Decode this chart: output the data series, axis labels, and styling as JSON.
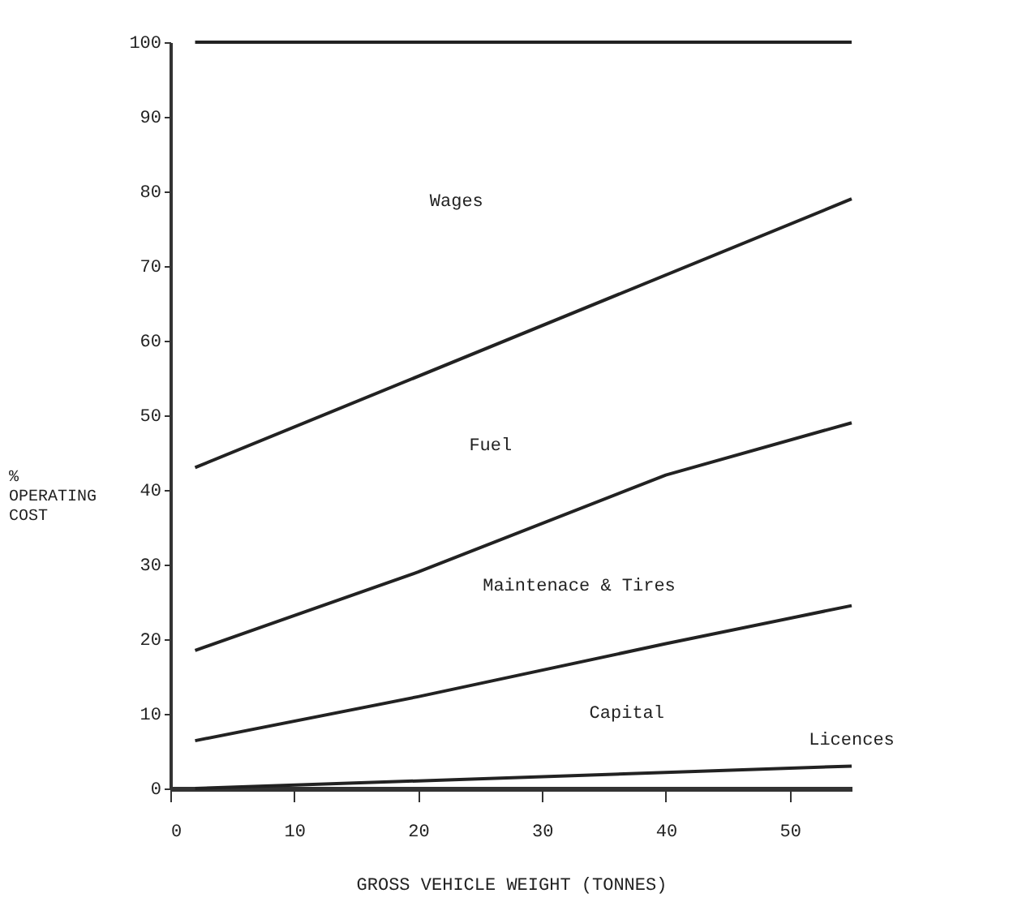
{
  "chart_data": {
    "type": "line",
    "xlabel": "GROSS VEHICLE WEIGHT (TONNES)",
    "ylabel": "% OPERATING COST",
    "xlim": [
      0,
      55
    ],
    "xticks": [
      0,
      10,
      20,
      30,
      40,
      50
    ],
    "ylim": [
      0,
      100
    ],
    "yticks": [
      0,
      10,
      20,
      30,
      40,
      50,
      60,
      70,
      80,
      90,
      100
    ],
    "grid": false,
    "marker": "none",
    "line_style": "solid",
    "series": [
      {
        "color": "#222222",
        "x": [
          2,
          55
        ],
        "values": [
          100,
          100
        ]
      },
      {
        "color": "#222222",
        "x": [
          2,
          55
        ],
        "values": [
          43,
          79
        ]
      },
      {
        "color": "#222222",
        "x": [
          2,
          20,
          40,
          55
        ],
        "values": [
          18.5,
          29,
          42,
          49
        ]
      },
      {
        "color": "#222222",
        "x": [
          2,
          20,
          40,
          55
        ],
        "values": [
          6.4,
          12.3,
          19.4,
          24.5
        ]
      },
      {
        "color": "#222222",
        "x": [
          2,
          55
        ],
        "values": [
          0,
          3
        ]
      }
    ],
    "annotations": [
      "Wages",
      "Fuel",
      "Maintenace & Tires",
      "Capital",
      "Licences"
    ]
  }
}
